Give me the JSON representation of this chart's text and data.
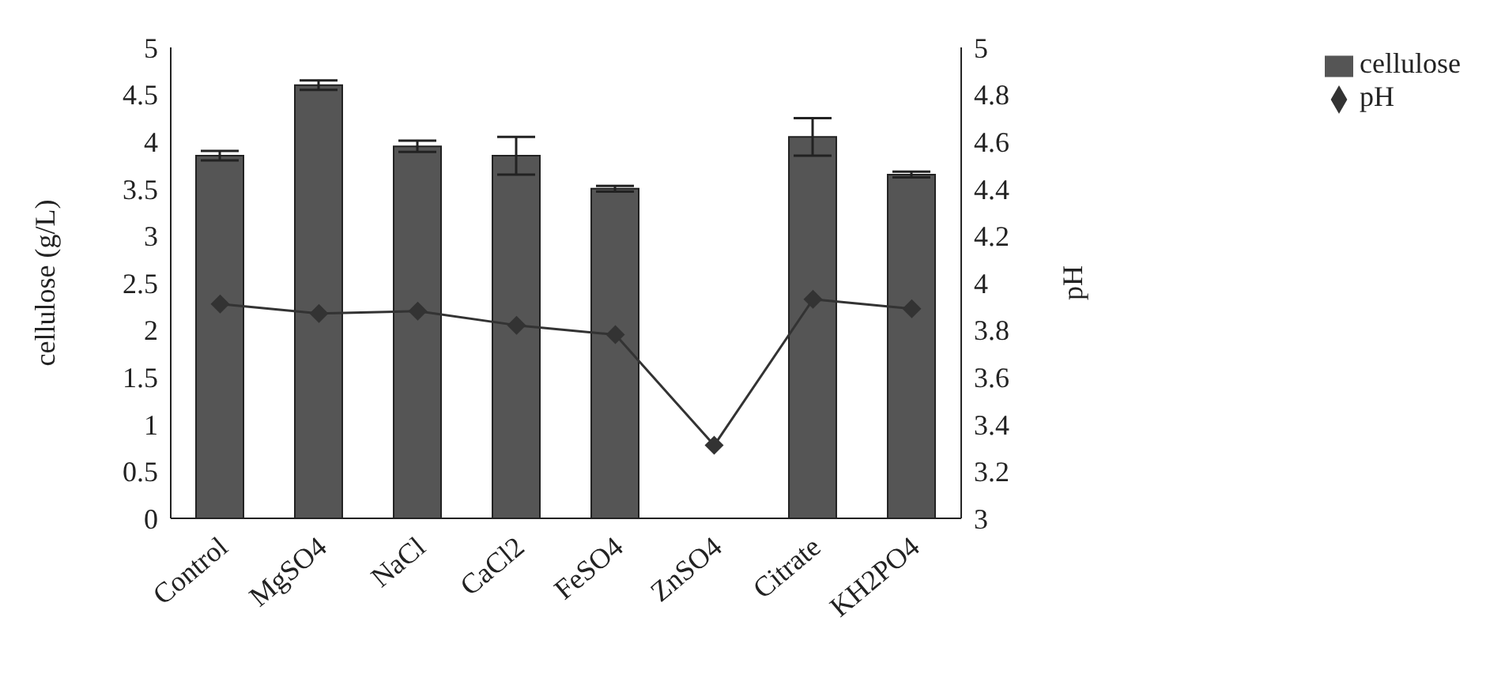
{
  "chart_data": {
    "type": "bar",
    "categories": [
      "Control",
      "MgSO4",
      "NaCl",
      "CaCl2",
      "FeSO4",
      "ZnSO4",
      "Citrate",
      "KH2PO4"
    ],
    "ylabel": "cellulose (g/L)",
    "y2label": "pH",
    "series": [
      {
        "name": "cellulose",
        "color": "#555555",
        "values": [
          3.85,
          4.6,
          3.95,
          3.85,
          3.5,
          0,
          4.05,
          3.65
        ],
        "errors": [
          0.05,
          0.05,
          0.06,
          0.2,
          0.03,
          null,
          0.2,
          0.03
        ]
      },
      {
        "name": "pH",
        "type": "line",
        "axis": "y2",
        "color": "#333333",
        "marker": "diamond",
        "values": [
          3.91,
          3.87,
          3.88,
          3.82,
          3.78,
          3.31,
          3.93,
          3.89
        ]
      }
    ],
    "ylim": [
      0,
      5
    ],
    "yticks": [
      0,
      0.5,
      1,
      1.5,
      2,
      2.5,
      3,
      3.5,
      4,
      4.5,
      5
    ],
    "y2lim": [
      3,
      5
    ],
    "y2ticks": [
      3,
      3.2,
      3.4,
      3.6,
      3.8,
      4,
      4.2,
      4.4,
      4.6,
      4.8,
      5
    ],
    "grid": false,
    "legend": "top right"
  }
}
